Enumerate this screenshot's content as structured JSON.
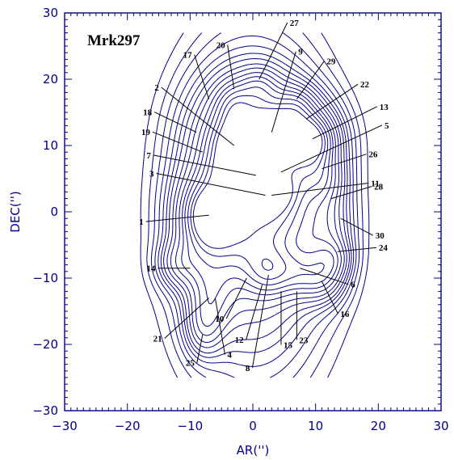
{
  "chart_data": {
    "type": "contour",
    "title": "Mrk297",
    "xlabel": "AR('')",
    "ylabel": "DEC('')",
    "xlim": [
      -30,
      30
    ],
    "ylim": [
      -30,
      30
    ],
    "xticks": [
      -30,
      -20,
      -10,
      0,
      10,
      20,
      30
    ],
    "yticks": [
      -30,
      -20,
      -10,
      0,
      10,
      20,
      30
    ],
    "axis_color": "#00008b",
    "contour_color": "#00008b",
    "knots": [
      {
        "label": "1",
        "x": -7,
        "y": -0.5
      },
      {
        "label": "2",
        "x": -3,
        "y": 10
      },
      {
        "label": "3",
        "x": 2,
        "y": 2.5
      },
      {
        "label": "4",
        "x": -6,
        "y": -13
      },
      {
        "label": "5",
        "x": 4.5,
        "y": 6
      },
      {
        "label": "6",
        "x": 7.5,
        "y": -8.5
      },
      {
        "label": "7",
        "x": 0.5,
        "y": 5.5
      },
      {
        "label": "8",
        "x": 2.5,
        "y": -9.5
      },
      {
        "label": "9",
        "x": 3,
        "y": 12
      },
      {
        "label": "10",
        "x": -1,
        "y": -10
      },
      {
        "label": "11",
        "x": 3,
        "y": 2.5
      },
      {
        "label": "12",
        "x": 1.5,
        "y": -11
      },
      {
        "label": "13",
        "x": 9.5,
        "y": 11
      },
      {
        "label": "14",
        "x": -10,
        "y": -8.5
      },
      {
        "label": "15",
        "x": 4.5,
        "y": -12
      },
      {
        "label": "16",
        "x": 11,
        "y": -10.5
      },
      {
        "label": "17",
        "x": -7,
        "y": 17
      },
      {
        "label": "18",
        "x": -9,
        "y": 12
      },
      {
        "label": "19",
        "x": -8,
        "y": 9
      },
      {
        "label": "20",
        "x": -3,
        "y": 18.5
      },
      {
        "label": "21",
        "x": -7,
        "y": -13
      },
      {
        "label": "22",
        "x": 8.5,
        "y": 14
      },
      {
        "label": "23",
        "x": 7,
        "y": -12
      },
      {
        "label": "24",
        "x": 13.5,
        "y": -6
      },
      {
        "label": "25",
        "x": -8,
        "y": -18.5
      },
      {
        "label": "26",
        "x": 11,
        "y": 6.5
      },
      {
        "label": "27",
        "x": 1,
        "y": 20
      },
      {
        "label": "28",
        "x": 12.5,
        "y": 2
      },
      {
        "label": "29",
        "x": 7,
        "y": 17
      },
      {
        "label": "30",
        "x": 14,
        "y": -1
      }
    ]
  }
}
